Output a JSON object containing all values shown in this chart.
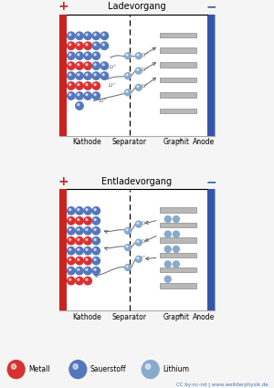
{
  "title_charge": "Ladevorgang",
  "title_discharge": "Entladevorgang",
  "label_kathode": "Kathode",
  "label_separator": "Separator",
  "label_graphit": "Graphit",
  "label_anode": "Anode",
  "legend_metall": "Metall",
  "legend_sauerstoff": "Sauerstoff",
  "legend_lithium": "Lithium",
  "credit": "CC by-nc-nd | www.weitderphysik.de",
  "color_metall": "#d93030",
  "color_sauerstoff": "#5577bb",
  "color_lithium": "#88aacc",
  "color_anode_bar": "#3355aa",
  "color_kathode_bar": "#cc2222",
  "color_graphit": "#b8b8b8",
  "color_graphit_edge": "#888888",
  "color_frame": "#aaaaaa",
  "plus_color": "#cc2222",
  "minus_color": "#3355aa",
  "bg_color": "#f5f5f5",
  "arrow_color": "#666666",
  "li_text_color": "#555555"
}
